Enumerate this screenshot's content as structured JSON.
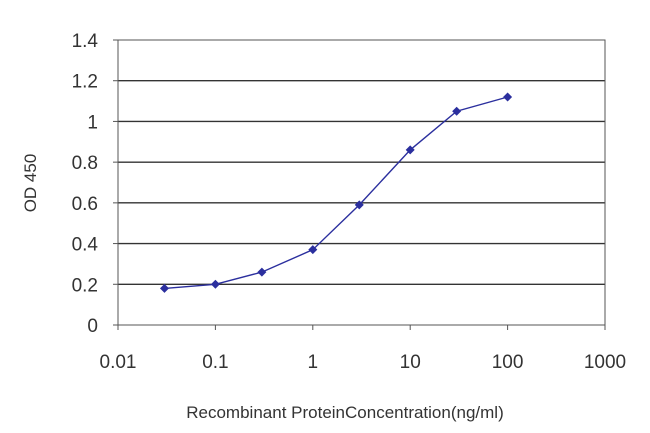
{
  "chart_data": {
    "type": "line",
    "xscale": "log",
    "xlabel": "Recombinant ProteinConcentration(ng/ml)",
    "ylabel": "OD 450",
    "xlim": [
      0.01,
      1000
    ],
    "ylim": [
      0,
      1.4
    ],
    "x_ticks": [
      0.01,
      0.1,
      1,
      10,
      100,
      1000
    ],
    "x_tick_labels": [
      "0.01",
      "0.1",
      "1",
      "10",
      "100",
      "1000"
    ],
    "y_ticks": [
      0,
      0.2,
      0.4,
      0.6,
      0.8,
      1,
      1.2,
      1.4
    ],
    "y_tick_labels": [
      "0",
      "0.2",
      "0.4",
      "0.6",
      "0.8",
      "1",
      "1.2",
      "1.4"
    ],
    "grid": "horizontal",
    "series": [
      {
        "color": "#2b2f9e",
        "x": [
          0.03,
          0.1,
          0.3,
          1,
          3,
          10,
          30,
          100
        ],
        "y": [
          0.18,
          0.2,
          0.26,
          0.37,
          0.59,
          0.86,
          1.05,
          1.12
        ]
      }
    ]
  }
}
